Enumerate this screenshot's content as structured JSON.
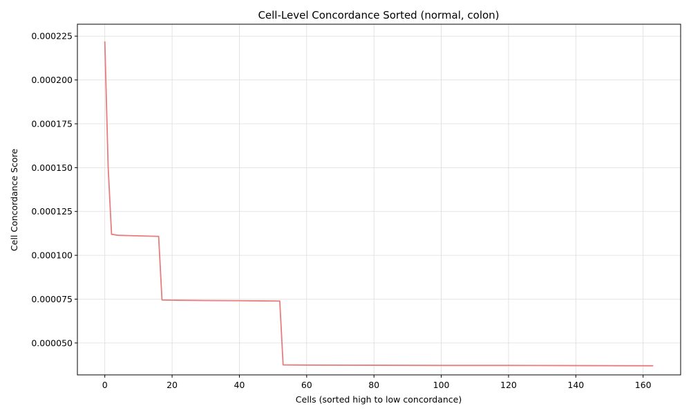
{
  "chart_data": {
    "type": "line",
    "title": "Cell-Level Concordance Sorted (normal, colon)",
    "xlabel": "Cells (sorted high to low concordance)",
    "ylabel": "Cell Concordance Score",
    "xlim": [
      -8.15,
      171.15
    ],
    "ylim": [
      3.18e-05,
      0.0002318
    ],
    "xticks": [
      0,
      20,
      40,
      60,
      80,
      100,
      120,
      140,
      160
    ],
    "xtick_labels": [
      "0",
      "20",
      "40",
      "60",
      "80",
      "100",
      "120",
      "140",
      "160"
    ],
    "yticks": [
      5e-05,
      7.5e-05,
      0.0001,
      0.000125,
      0.00015,
      0.000175,
      0.0002,
      0.000225
    ],
    "ytick_labels": [
      "0.000050",
      "0.000075",
      "0.000100",
      "0.000125",
      "0.000150",
      "0.000175",
      "0.000200",
      "0.000225"
    ],
    "grid": true,
    "series": [
      {
        "color": "#e77c7c",
        "x": [
          0,
          1,
          2,
          4,
          8,
          12,
          16,
          17,
          20,
          30,
          40,
          52,
          53,
          60,
          80,
          100,
          120,
          140,
          163
        ],
        "y": [
          0.000222,
          0.00015,
          0.000112,
          0.0001114,
          0.0001112,
          0.000111,
          0.0001108,
          7.45e-05,
          7.44e-05,
          7.42e-05,
          7.41e-05,
          7.39e-05,
          3.75e-05,
          3.74e-05,
          3.73e-05,
          3.72e-05,
          3.72e-05,
          3.71e-05,
          3.7e-05
        ]
      }
    ]
  }
}
